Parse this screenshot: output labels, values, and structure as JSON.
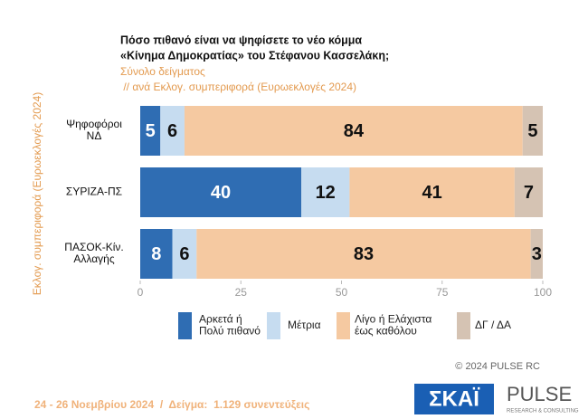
{
  "chart_data": {
    "type": "stacked-bar-horizontal",
    "title": [
      "Πόσο πιθανό είναι να ψηφίσετε το νέο κόμμα",
      "«Κίνημα Δημοκρατίας» του Στέφανου Κασσελάκη;"
    ],
    "subtitle": [
      "Σύνολο δείγματος",
      " // ανά Εκλογ. συμπεριφορά (Ευρωεκλογές 2024)"
    ],
    "y_label": "Εκλογ. συμπεριφορά (Ευρωεκλογές 2024)",
    "categories": [
      "Ψηφοφόροι\nΝΔ",
      "ΣΥΡΙΖΑ-ΠΣ",
      "ΠΑΣΟΚ-Κίν.\nΑλλαγής"
    ],
    "series": [
      {
        "name": "Αρκετά ή\nΠολύ πιθανό",
        "color": "#2f6db3",
        "values": [
          5,
          40,
          8
        ]
      },
      {
        "name": "Μέτρια",
        "color": "#c6dcf0",
        "values": [
          6,
          12,
          6
        ]
      },
      {
        "name": "Λίγο ή Ελάχιστα\nέως καθόλου",
        "color": "#f5c9a1",
        "values": [
          84,
          41,
          83
        ]
      },
      {
        "name": "ΔΓ / ΔΑ",
        "color": "#d5c3b3",
        "values": [
          5,
          7,
          3
        ]
      }
    ],
    "xlim": [
      0,
      100
    ],
    "xticks": [
      0,
      25,
      50,
      75,
      100
    ],
    "copyright": "© 2024 PULSE RC",
    "footer": "24 - 26 Νοεμβρίου 2024  /  Δείγμα:  1.129 συνεντεύξεις",
    "logo_skai": "ΣΚΑΪ",
    "logo_pulse": "PULSE",
    "logo_pulse_sub": "RESEARCH & CONSULTING"
  }
}
